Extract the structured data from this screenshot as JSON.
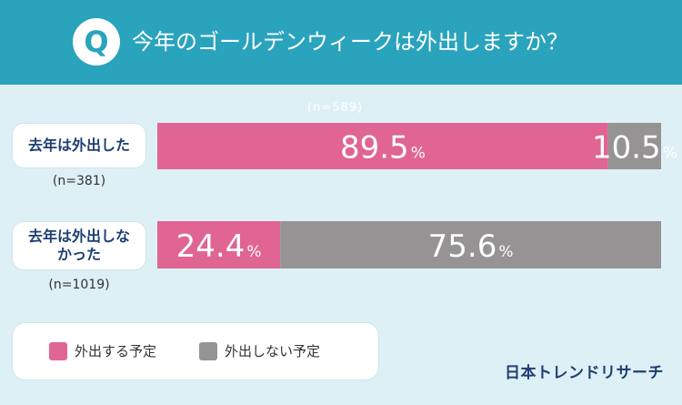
{
  "header": {
    "q_label": "Q",
    "question": "今年のゴールデンウィークは外出しますか？"
  },
  "sample_top": "(n=589)",
  "colors": {
    "going": "#e06593",
    "not_going": "#959393",
    "header": "#2aa3bd",
    "label_text": "#1f3f73"
  },
  "chart_data": {
    "type": "bar",
    "orientation": "horizontal-stacked",
    "unit": "%",
    "categories": [
      {
        "label": "去年は外出した",
        "n": "(n=381)"
      },
      {
        "label": "去年は外出しなかった",
        "n": "(n=1019)"
      }
    ],
    "series": [
      {
        "name": "外出する予定",
        "values": [
          89.5,
          24.4
        ]
      },
      {
        "name": "外出しない予定",
        "values": [
          10.5,
          75.6
        ]
      }
    ],
    "xlim": [
      0,
      100
    ],
    "legend_position": "bottom-left"
  },
  "brand": "日本トレンドリサーチ"
}
